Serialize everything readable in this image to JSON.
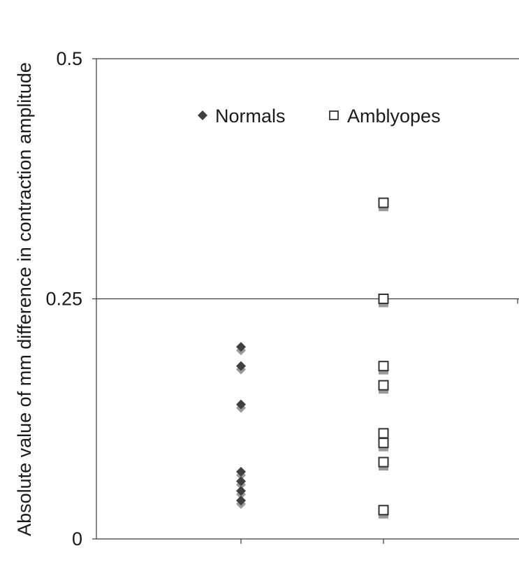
{
  "chart_data": {
    "type": "scatter",
    "ylabel": "Absolute value of mm difference in contraction amplitude",
    "xlabel": "",
    "ylim": [
      0,
      0.5
    ],
    "yticks": [
      "0",
      "0.25",
      "0.5"
    ],
    "grid": "horizontal line at 0.25",
    "legend_position": "top-center",
    "series": [
      {
        "name": "Normals",
        "marker": "filled-diamond",
        "x": 1,
        "values": [
          0.2,
          0.18,
          0.14,
          0.07,
          0.06,
          0.05,
          0.04
        ]
      },
      {
        "name": "Amblyopes",
        "marker": "open-square",
        "x": 2,
        "values": [
          0.35,
          0.25,
          0.18,
          0.16,
          0.11,
          0.1,
          0.08,
          0.03
        ]
      }
    ],
    "colors": {
      "normals_fill": "#404040",
      "normals_shadow": "#9a9a9a",
      "amblyopes_stroke": "#333333",
      "amblyopes_shadow": "#9a9a9a",
      "axis": "#3a3a3a"
    }
  }
}
